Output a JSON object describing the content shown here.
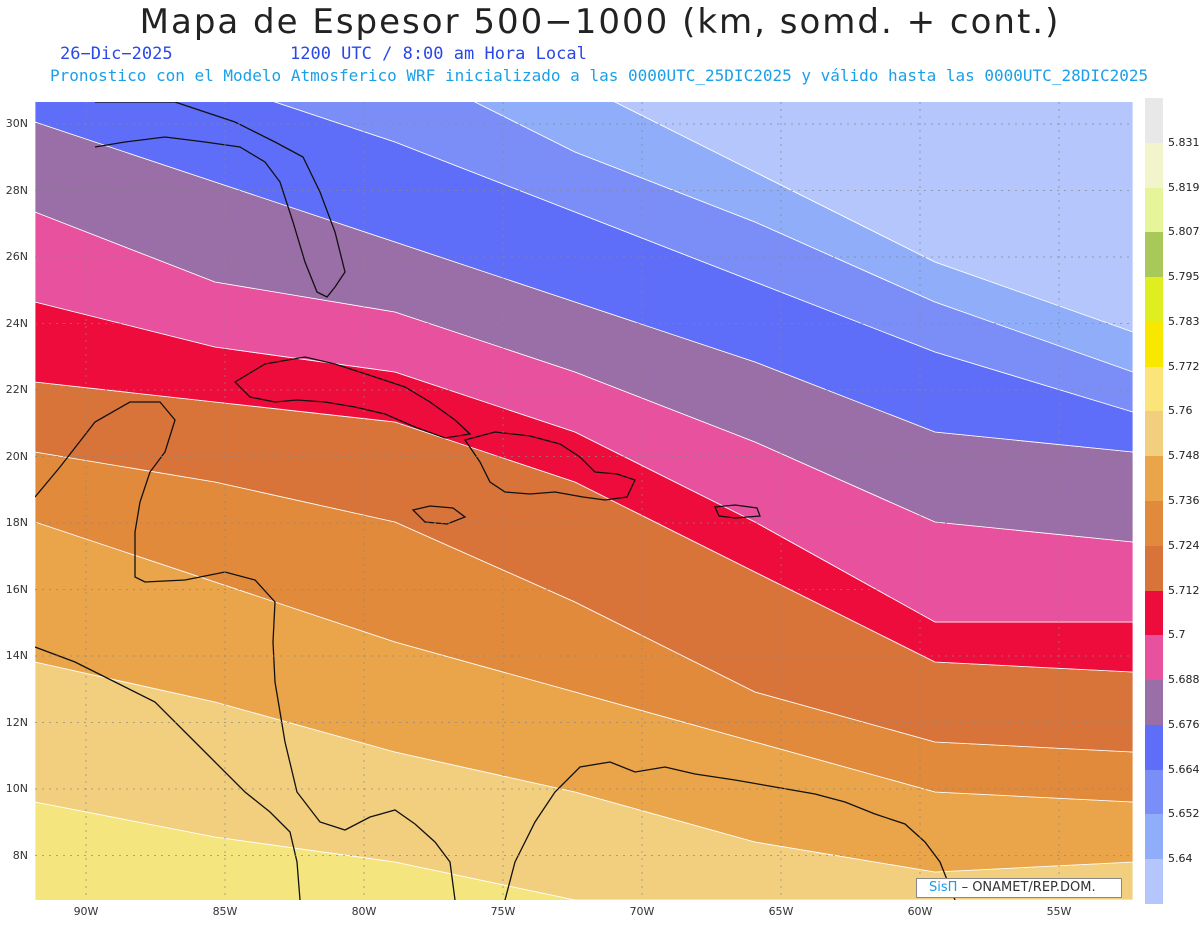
{
  "header": {
    "title": "Mapa de Espesor 500−1000 (km, somd. + cont.)",
    "date": "26−Dic−2025",
    "time": "1200 UTC / 8:00 am Hora Local",
    "model": "Pronostico con el Modelo Atmosferico WRF inicializado a las 0000UTC_25DIC2025 y válido hasta las  0000UTC_28DIC2025"
  },
  "map": {
    "lat_labels": [
      "30N",
      "28N",
      "26N",
      "24N",
      "22N",
      "20N",
      "18N",
      "16N",
      "14N",
      "12N",
      "10N",
      "8N"
    ],
    "lon_labels": [
      "90W",
      "85W",
      "80W",
      "75W",
      "70W",
      "65W",
      "60W",
      "55W"
    ],
    "band_colors": [
      "#f5e57e",
      "#f2cf7e",
      "#eaa44a",
      "#e28a3c",
      "#d8733a",
      "#ee0c3c",
      "#e8519e",
      "#9a6ea6",
      "#5f6ef8",
      "#7b8ef8",
      "#8fadf8",
      "#b4c6fc"
    ]
  },
  "colorbar": {
    "labels": [
      "5.831",
      "5.819",
      "5.807",
      "5.795",
      "5.783",
      "5.772",
      "5.76",
      "5.748",
      "5.736",
      "5.724",
      "5.712",
      "5.7",
      "5.688",
      "5.676",
      "5.664",
      "5.652",
      "5.64"
    ],
    "colors": [
      "#e8e8e8",
      "#f2f5cc",
      "#e6f49a",
      "#a8c85a",
      "#dfee20",
      "#f8e800",
      "#fbe47a",
      "#f2cf7e",
      "#eaa44a",
      "#e28a3c",
      "#d8733a",
      "#ee0c3c",
      "#e8519e",
      "#9a6ea6",
      "#5f6ef8",
      "#7b8ef8",
      "#8fadf8",
      "#b4c6fc"
    ]
  },
  "credit": {
    "sis": "SisΠ",
    "org": "– ONAMET/REP.DOM."
  }
}
